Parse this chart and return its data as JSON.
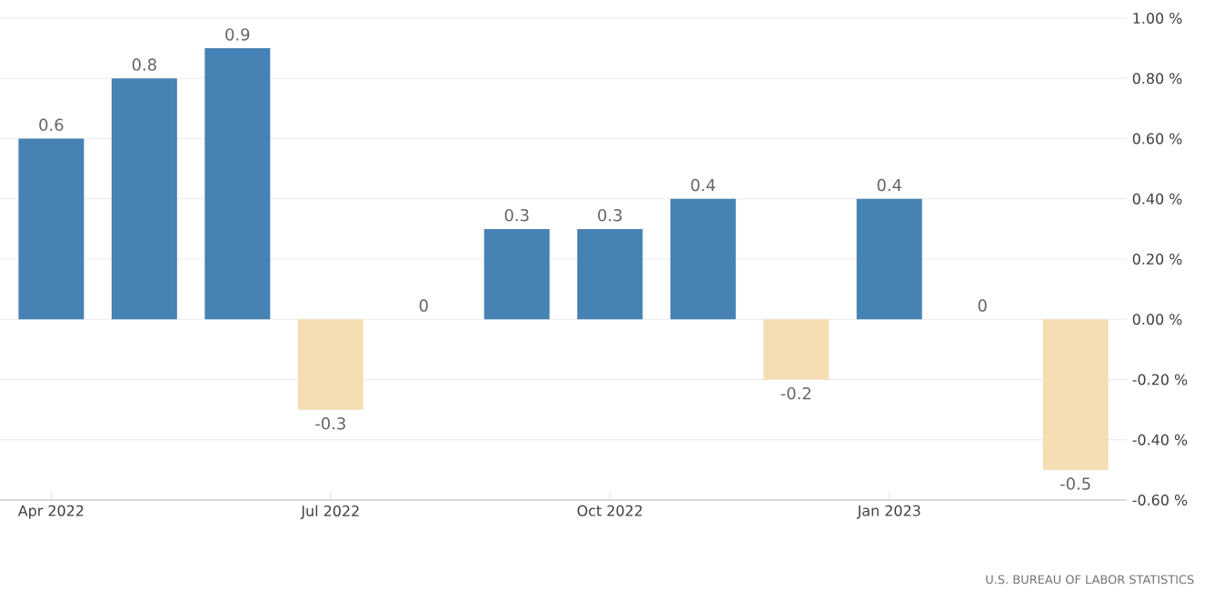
{
  "chart_data": {
    "type": "bar",
    "categories": [
      "Apr 2022",
      null,
      null,
      "Jul 2022",
      null,
      null,
      "Oct 2022",
      null,
      null,
      "Jan 2023",
      null,
      null
    ],
    "values": [
      0.6,
      0.8,
      0.9,
      -0.3,
      0,
      0.3,
      0.3,
      0.4,
      -0.2,
      0.4,
      0,
      -0.5
    ],
    "colors": [
      "#4682b4",
      "#4682b4",
      "#4682b4",
      "#f5deb3",
      "#4682b4",
      "#4682b4",
      "#4682b4",
      "#4682b4",
      "#f5deb3",
      "#4682b4",
      "#4682b4",
      "#f5deb3"
    ],
    "ylim": [
      -0.6,
      1.0
    ],
    "yticks": [
      {
        "value": 1.0,
        "label": "1.00 %"
      },
      {
        "value": 0.8,
        "label": "0.80 %"
      },
      {
        "value": 0.6,
        "label": "0.60 %"
      },
      {
        "value": 0.4,
        "label": "0.40 %"
      },
      {
        "value": 0.2,
        "label": "0.20 %"
      },
      {
        "value": 0,
        "label": "0.00 %"
      },
      {
        "value": -0.2,
        "label": "-0.20 %"
      },
      {
        "value": -0.4,
        "label": "-0.40 %"
      },
      {
        "value": -0.6,
        "label": "-0.60 %"
      }
    ],
    "grid": "y",
    "data_labels": true,
    "annotations": [
      "U.S. BUREAU OF LABOR STATISTICS"
    ]
  }
}
